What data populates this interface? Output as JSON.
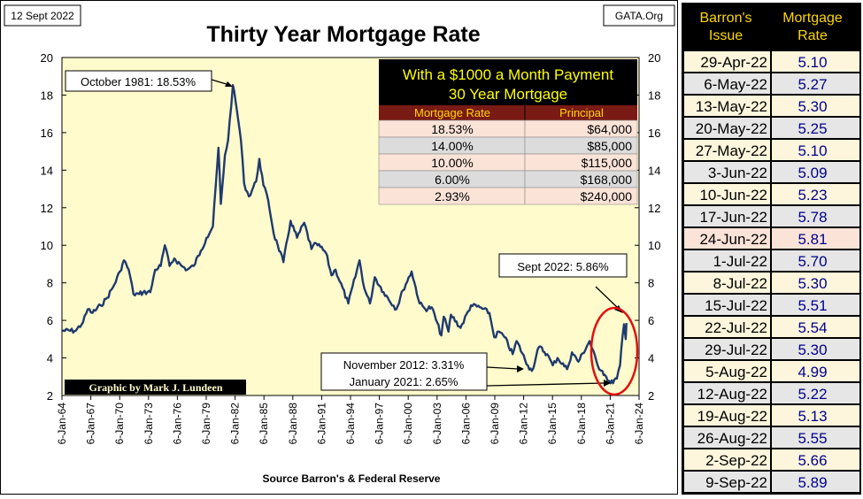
{
  "header": {
    "date": "12 Sept 2022",
    "title": "Thirty Year Mortgage Rate",
    "source_tag": "GATA.Org"
  },
  "footer": {
    "source": "Source Barron's & Federal Reserve",
    "credit": "Graphic by Mark J. Lundeen"
  },
  "annotations": {
    "peak": "October 1981: 18.53%",
    "current": "Sept 2022: 5.86%",
    "low_2012": "November 2012: 3.31%",
    "low_2021": "January 2021: 2.65%"
  },
  "payment_table": {
    "title_line1": "With a $1000 a Month Payment",
    "title_line2": "30 Year Mortgage",
    "headers": [
      "Mortgage Rate",
      "Principal"
    ],
    "rows": [
      [
        "18.53%",
        "$64,000"
      ],
      [
        "14.00%",
        "$85,000"
      ],
      [
        "10.00%",
        "$115,000"
      ],
      [
        "6.00%",
        "$168,000"
      ],
      [
        "2.93%",
        "$240,000"
      ]
    ]
  },
  "barrons_table": {
    "headers": [
      "Barron's Issue",
      "Mortgage Rate"
    ],
    "rows": [
      [
        "29-Apr-22",
        "5.10"
      ],
      [
        "6-May-22",
        "5.27"
      ],
      [
        "13-May-22",
        "5.30"
      ],
      [
        "20-May-22",
        "5.25"
      ],
      [
        "27-May-22",
        "5.10"
      ],
      [
        "3-Jun-22",
        "5.09"
      ],
      [
        "10-Jun-22",
        "5.23"
      ],
      [
        "17-Jun-22",
        "5.78"
      ],
      [
        "24-Jun-22",
        "5.81"
      ],
      [
        "1-Jul-22",
        "5.70"
      ],
      [
        "8-Jul-22",
        "5.30"
      ],
      [
        "15-Jul-22",
        "5.51"
      ],
      [
        "22-Jul-22",
        "5.54"
      ],
      [
        "29-Jul-22",
        "5.30"
      ],
      [
        "5-Aug-22",
        "4.99"
      ],
      [
        "12-Aug-22",
        "5.22"
      ],
      [
        "19-Aug-22",
        "5.13"
      ],
      [
        "26-Aug-22",
        "5.55"
      ],
      [
        "2-Sep-22",
        "5.66"
      ],
      [
        "9-Sep-22",
        "5.89"
      ]
    ],
    "highlight_row": 8,
    "colors": {
      "header_bg": "#000000",
      "header_text": "#ffd700",
      "row_odd_bg": "#fdf6dc",
      "row_even_bg": "#e6e6e6",
      "highlight_bg": "#fbe3d8",
      "rate_text": "#00008b",
      "date_text": "#000000"
    }
  },
  "colors": {
    "plot_bg": "#fffbcc",
    "line": "#1f3a6e",
    "circle": "#e01010",
    "table_title_bg": "#000000",
    "table_title_text": "#ffff00",
    "table_header_bg": "#7a1a14",
    "table_header_text": "#ffd700",
    "table_row_pink": "#fbe3d8",
    "table_row_gray": "#dcdcdc"
  },
  "chart_data": {
    "type": "line",
    "title": "Thirty Year Mortgage Rate",
    "xlabel": "",
    "ylabel": "",
    "ylim": [
      2,
      20
    ],
    "yticks": [
      2,
      4,
      6,
      8,
      10,
      12,
      14,
      16,
      18,
      20
    ],
    "x_tick_labels": [
      "6-Jan-64",
      "6-Jan-67",
      "6-Jan-70",
      "6-Jan-73",
      "6-Jan-76",
      "6-Jan-79",
      "6-Jan-82",
      "6-Jan-85",
      "6-Jan-88",
      "6-Jan-91",
      "6-Jan-94",
      "6-Jan-97",
      "6-Jan-00",
      "6-Jan-03",
      "6-Jan-06",
      "6-Jan-09",
      "6-Jan-12",
      "6-Jan-15",
      "6-Jan-18",
      "6-Jan-21",
      "6-Jan-24"
    ],
    "xlim": [
      "1964-01-06",
      "2024-01-06"
    ],
    "grid": false,
    "series": [
      {
        "points": [
          [
            "1964-01",
            5.45
          ],
          [
            "1965-06",
            5.45
          ],
          [
            "1966-03",
            5.9
          ],
          [
            "1966-09",
            6.6
          ],
          [
            "1967-03",
            6.4
          ],
          [
            "1968-01",
            6.8
          ],
          [
            "1968-09",
            7.2
          ],
          [
            "1969-06",
            7.9
          ],
          [
            "1970-01",
            8.6
          ],
          [
            "1970-06",
            9.2
          ],
          [
            "1970-12",
            8.7
          ],
          [
            "1971-06",
            7.4
          ],
          [
            "1972-01",
            7.4
          ],
          [
            "1972-06",
            7.5
          ],
          [
            "1973-03",
            7.5
          ],
          [
            "1973-09",
            8.7
          ],
          [
            "1974-04",
            8.9
          ],
          [
            "1974-09",
            10.0
          ],
          [
            "1975-03",
            8.9
          ],
          [
            "1975-09",
            9.3
          ],
          [
            "1976-06",
            8.9
          ],
          [
            "1977-01",
            8.7
          ],
          [
            "1977-09",
            8.9
          ],
          [
            "1978-06",
            9.7
          ],
          [
            "1979-01",
            10.4
          ],
          [
            "1979-09",
            11.0
          ],
          [
            "1980-04",
            15.2
          ],
          [
            "1980-07",
            12.2
          ],
          [
            "1980-12",
            14.8
          ],
          [
            "1981-04",
            15.6
          ],
          [
            "1981-10",
            18.53
          ],
          [
            "1982-03",
            17.2
          ],
          [
            "1982-08",
            15.6
          ],
          [
            "1982-12",
            13.3
          ],
          [
            "1983-06",
            12.6
          ],
          [
            "1984-03",
            13.4
          ],
          [
            "1984-07",
            14.6
          ],
          [
            "1984-12",
            13.2
          ],
          [
            "1985-06",
            12.4
          ],
          [
            "1986-01",
            10.6
          ],
          [
            "1986-06",
            10.0
          ],
          [
            "1987-01",
            9.1
          ],
          [
            "1987-10",
            11.3
          ],
          [
            "1988-06",
            10.4
          ],
          [
            "1989-03",
            11.2
          ],
          [
            "1989-12",
            9.8
          ],
          [
            "1990-06",
            10.1
          ],
          [
            "1991-06",
            9.6
          ],
          [
            "1992-01",
            8.4
          ],
          [
            "1992-06",
            8.7
          ],
          [
            "1993-10",
            6.9
          ],
          [
            "1994-12",
            9.2
          ],
          [
            "1995-06",
            7.7
          ],
          [
            "1996-01",
            6.9
          ],
          [
            "1996-07",
            8.3
          ],
          [
            "1997-06",
            7.5
          ],
          [
            "1998-10",
            6.6
          ],
          [
            "1999-06",
            7.6
          ],
          [
            "2000-05",
            8.6
          ],
          [
            "2001-03",
            6.9
          ],
          [
            "2001-10",
            6.6
          ],
          [
            "2002-06",
            6.7
          ],
          [
            "2003-06",
            5.2
          ],
          [
            "2003-09",
            6.2
          ],
          [
            "2004-03",
            5.4
          ],
          [
            "2004-06",
            6.3
          ],
          [
            "2005-06",
            5.6
          ],
          [
            "2006-07",
            6.8
          ],
          [
            "2007-06",
            6.7
          ],
          [
            "2008-06",
            6.4
          ],
          [
            "2008-12",
            5.1
          ],
          [
            "2009-06",
            5.4
          ],
          [
            "2010-01",
            5.1
          ],
          [
            "2010-11",
            4.2
          ],
          [
            "2011-04",
            4.9
          ],
          [
            "2012-06",
            3.6
          ],
          [
            "2012-11",
            3.31
          ],
          [
            "2013-08",
            4.6
          ],
          [
            "2014-06",
            4.2
          ],
          [
            "2015-01",
            3.6
          ],
          [
            "2015-07",
            4.0
          ],
          [
            "2016-07",
            3.4
          ],
          [
            "2017-01",
            4.3
          ],
          [
            "2017-09",
            3.8
          ],
          [
            "2018-11",
            4.9
          ],
          [
            "2019-09",
            3.6
          ],
          [
            "2020-03",
            3.3
          ],
          [
            "2020-06",
            3.1
          ],
          [
            "2021-01",
            2.65
          ],
          [
            "2021-09",
            2.9
          ],
          [
            "2022-01",
            3.6
          ],
          [
            "2022-04",
            5.1
          ],
          [
            "2022-06",
            5.8
          ],
          [
            "2022-08",
            5.0
          ],
          [
            "2022-09",
            5.86
          ]
        ]
      }
    ]
  }
}
